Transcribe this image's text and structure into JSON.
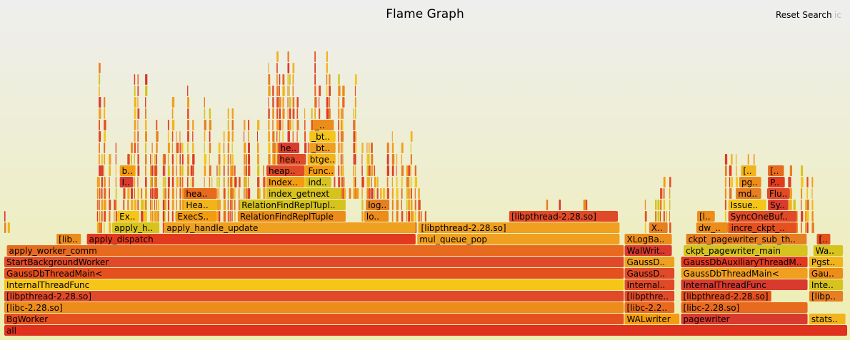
{
  "header": {
    "title": "Flame Graph",
    "reset_label": "Reset Search",
    "search_label": "ic"
  },
  "palette": [
    "#e5501f",
    "#e67e22",
    "#f0a020",
    "#f5c518",
    "#e23a1f",
    "#d93a2e",
    "#ec8c1a",
    "#f2b41c",
    "#e86a1e",
    "#d6c31d",
    "#e14a28",
    "#f39c12"
  ],
  "chart_data": {
    "type": "flame",
    "title": "Flame Graph",
    "labeled_frames": [
      {
        "name": "all",
        "depth": 0,
        "start": 0,
        "end": 1000
      },
      {
        "name": "BgWorker",
        "depth": 1,
        "start": 0,
        "end": 735
      },
      {
        "name": "WALwriter",
        "depth": 1,
        "start": 736,
        "end": 801
      },
      {
        "name": "pagewriter",
        "depth": 1,
        "start": 803,
        "end": 953
      },
      {
        "name": "stats..",
        "depth": 1,
        "start": 955,
        "end": 998
      },
      {
        "name": "[libc-2.28.so]",
        "depth": 2,
        "start": 0,
        "end": 735
      },
      {
        "name": "[libc-2.2..",
        "depth": 2,
        "start": 736,
        "end": 795
      },
      {
        "name": "[libc-2.28.so]",
        "depth": 2,
        "start": 803,
        "end": 953
      },
      {
        "name": "[libpthread-2.28.so]",
        "depth": 3,
        "start": 0,
        "end": 735
      },
      {
        "name": "[libpthre..",
        "depth": 3,
        "start": 736,
        "end": 795
      },
      {
        "name": "[libpthread-2.28.so]",
        "depth": 3,
        "start": 803,
        "end": 910
      },
      {
        "name": "[libp..",
        "depth": 3,
        "start": 955,
        "end": 995
      },
      {
        "name": "InternalThreadFunc",
        "depth": 4,
        "start": 0,
        "end": 735
      },
      {
        "name": "Internal..",
        "depth": 4,
        "start": 736,
        "end": 795
      },
      {
        "name": "InternalThreadFunc",
        "depth": 4,
        "start": 803,
        "end": 953
      },
      {
        "name": "Inte..",
        "depth": 4,
        "start": 955,
        "end": 995
      },
      {
        "name": "GaussDbThreadMain<",
        "depth": 5,
        "start": 0,
        "end": 735
      },
      {
        "name": "GaussD..",
        "depth": 5,
        "start": 736,
        "end": 795
      },
      {
        "name": "GaussDbThreadMain<",
        "depth": 5,
        "start": 803,
        "end": 953
      },
      {
        "name": "Gau..",
        "depth": 5,
        "start": 955,
        "end": 995
      },
      {
        "name": "StartBackgroundWorker",
        "depth": 6,
        "start": 0,
        "end": 735
      },
      {
        "name": "GaussD..",
        "depth": 6,
        "start": 736,
        "end": 795
      },
      {
        "name": "GaussDbAuxiliaryThreadM..",
        "depth": 6,
        "start": 803,
        "end": 953
      },
      {
        "name": "Pgst..",
        "depth": 6,
        "start": 955,
        "end": 995
      },
      {
        "name": "apply_worker_comm",
        "depth": 7,
        "start": 3,
        "end": 735
      },
      {
        "name": "WalWrit..",
        "depth": 7,
        "start": 736,
        "end": 792
      },
      {
        "name": "ckpt_pagewriter_main",
        "depth": 7,
        "start": 806,
        "end": 953
      },
      {
        "name": "Wa..",
        "depth": 7,
        "start": 960,
        "end": 995
      },
      {
        "name": "[lib..",
        "depth": 8,
        "start": 62,
        "end": 91
      },
      {
        "name": "apply_dispatch",
        "depth": 8,
        "start": 98,
        "end": 488
      },
      {
        "name": "mul_queue_pop",
        "depth": 8,
        "start": 490,
        "end": 730
      },
      {
        "name": "XLogBa..",
        "depth": 8,
        "start": 736,
        "end": 792
      },
      {
        "name": "ckpt_pagewriter_sub_th..",
        "depth": 8,
        "start": 809,
        "end": 952
      },
      {
        "name": "[..",
        "depth": 8,
        "start": 964,
        "end": 980
      },
      {
        "name": "apply_h..",
        "depth": 9,
        "start": 128,
        "end": 184
      },
      {
        "name": "apply_handle_update",
        "depth": 9,
        "start": 190,
        "end": 488
      },
      {
        "name": "[libpthread-2.28.so]",
        "depth": 9,
        "start": 492,
        "end": 730
      },
      {
        "name": "X..",
        "depth": 9,
        "start": 765,
        "end": 787
      },
      {
        "name": "dw_..",
        "depth": 9,
        "start": 821,
        "end": 858
      },
      {
        "name": "incre_ckpt_..",
        "depth": 9,
        "start": 860,
        "end": 940
      },
      {
        "name": "Ex..",
        "depth": 10,
        "start": 134,
        "end": 160
      },
      {
        "name": "ExecS..",
        "depth": 10,
        "start": 203,
        "end": 252
      },
      {
        "name": "RelationFindReplTuple",
        "depth": 10,
        "start": 277,
        "end": 405
      },
      {
        "name": "lo..",
        "depth": 10,
        "start": 427,
        "end": 456
      },
      {
        "name": "[libpthread-2.28.so]",
        "depth": 10,
        "start": 599,
        "end": 728
      },
      {
        "name": "[l..",
        "depth": 10,
        "start": 822,
        "end": 843
      },
      {
        "name": "SyncOneBuf..",
        "depth": 10,
        "start": 859,
        "end": 940
      },
      {
        "name": "Hea..",
        "depth": 11,
        "start": 213,
        "end": 252
      },
      {
        "name": "RelationFindReplTupl..",
        "depth": 11,
        "start": 279,
        "end": 405
      },
      {
        "name": "log..",
        "depth": 11,
        "start": 429,
        "end": 456
      },
      {
        "name": "Issue..",
        "depth": 11,
        "start": 859,
        "end": 904
      },
      {
        "name": "Sy..",
        "depth": 11,
        "start": 906,
        "end": 930
      },
      {
        "name": "hea..",
        "depth": 12,
        "start": 213,
        "end": 252
      },
      {
        "name": "index_getnext",
        "depth": 12,
        "start": 311,
        "end": 400
      },
      {
        "name": "md..",
        "depth": 12,
        "start": 868,
        "end": 898
      },
      {
        "name": "Flu..",
        "depth": 12,
        "start": 905,
        "end": 932
      },
      {
        "name": "I..",
        "depth": 13,
        "start": 137,
        "end": 153
      },
      {
        "name": "Index..",
        "depth": 13,
        "start": 311,
        "end": 356
      },
      {
        "name": "ind..",
        "depth": 13,
        "start": 358,
        "end": 388
      },
      {
        "name": "pg..",
        "depth": 13,
        "start": 872,
        "end": 898
      },
      {
        "name": "P..",
        "depth": 13,
        "start": 906,
        "end": 926
      },
      {
        "name": "b..",
        "depth": 14,
        "start": 137,
        "end": 155
      },
      {
        "name": "heap..",
        "depth": 14,
        "start": 311,
        "end": 356
      },
      {
        "name": "Func..",
        "depth": 14,
        "start": 358,
        "end": 392
      },
      {
        "name": "[..",
        "depth": 14,
        "start": 874,
        "end": 892
      },
      {
        "name": "[..",
        "depth": 14,
        "start": 906,
        "end": 925
      },
      {
        "name": "hea..",
        "depth": 15,
        "start": 324,
        "end": 358
      },
      {
        "name": "btge..",
        "depth": 15,
        "start": 360,
        "end": 393
      },
      {
        "name": "he..",
        "depth": 16,
        "start": 325,
        "end": 350
      },
      {
        "name": "_bt..",
        "depth": 16,
        "start": 362,
        "end": 393
      },
      {
        "name": "_bt..",
        "depth": 17,
        "start": 362,
        "end": 393
      },
      {
        "name": "_..",
        "depth": 18,
        "start": 366,
        "end": 391
      }
    ]
  }
}
